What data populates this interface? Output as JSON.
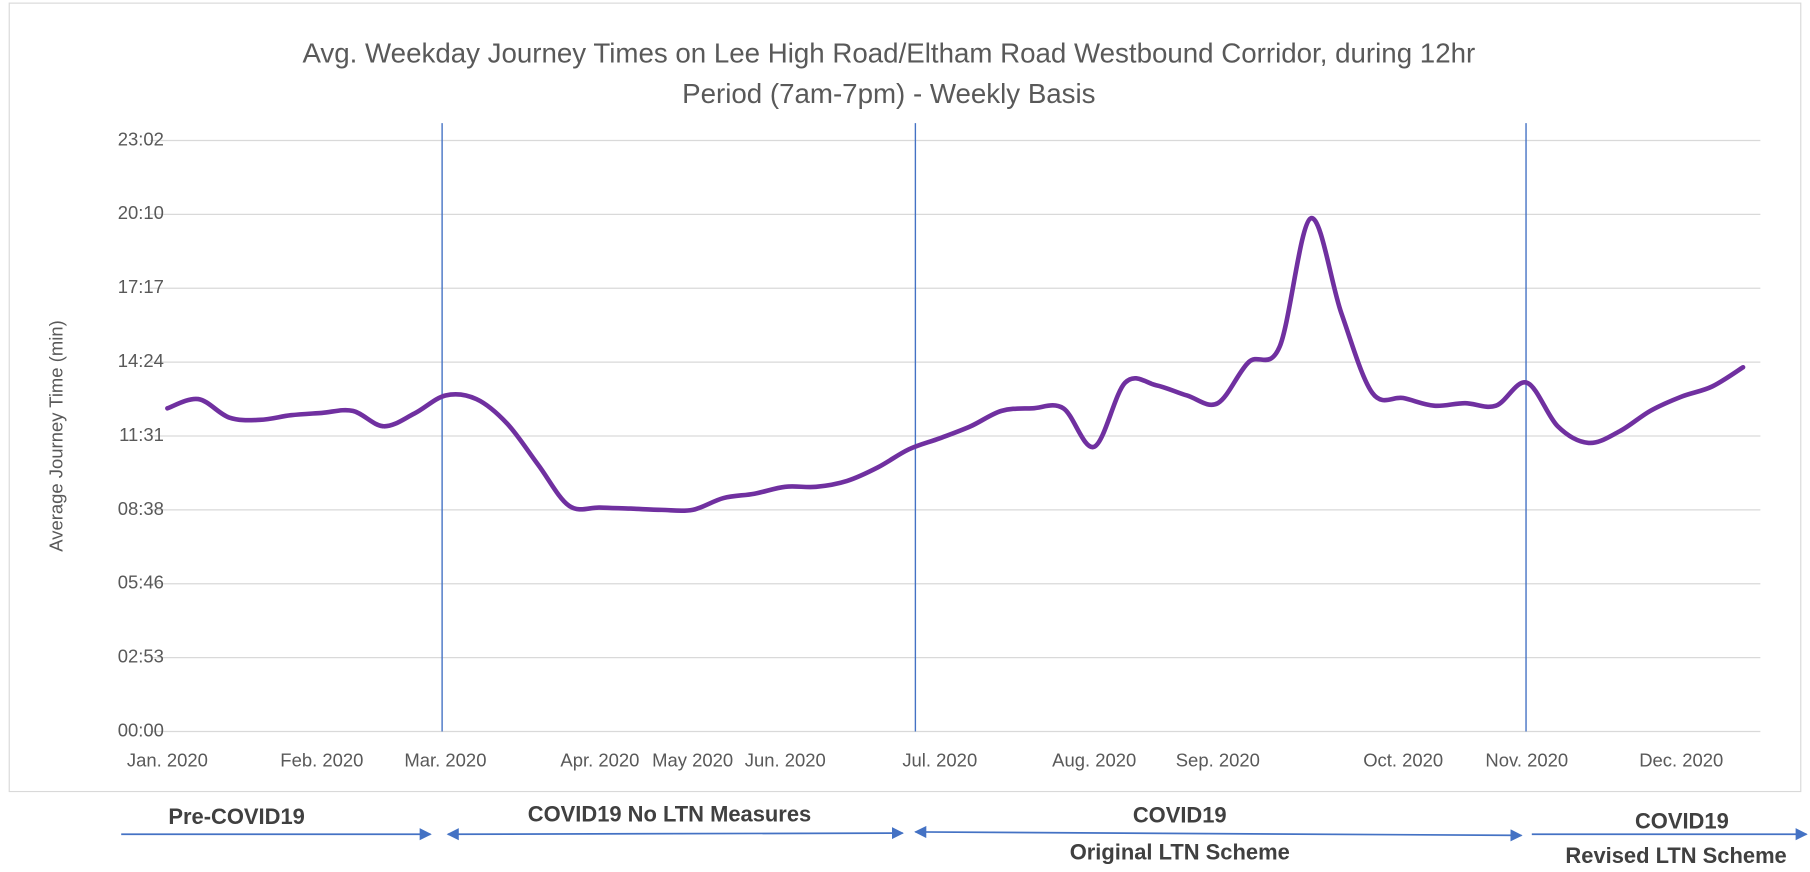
{
  "chart_data": {
    "type": "line",
    "title": [
      "Avg. Weekday Journey Times on Lee High Road/Eltham Road Westbound Corridor, during 12hr",
      "Period (7am-7pm) - Weekly Basis"
    ],
    "y_label": "Average Journey Time (min)",
    "categories": [
      "Jan. 2020",
      null,
      null,
      null,
      null,
      "Feb. 2020",
      null,
      null,
      null,
      "Mar. 2020",
      null,
      null,
      null,
      null,
      "Apr. 2020",
      null,
      null,
      "May 2020",
      null,
      null,
      "Jun. 2020",
      null,
      null,
      null,
      null,
      "Jul. 2020",
      null,
      null,
      null,
      null,
      "Aug. 2020",
      null,
      null,
      null,
      "Sep. 2020",
      null,
      null,
      null,
      null,
      null,
      "Oct. 2020",
      null,
      null,
      null,
      "Nov. 2020",
      null,
      null,
      null,
      null,
      "Dec. 2020",
      null,
      null
    ],
    "series": [
      {
        "name": "Average Journey Time",
        "color": "#7030a0",
        "values": [
          12.6,
          12.96,
          12.24,
          12.15,
          12.33,
          12.42,
          12.5,
          11.9,
          12.4,
          13.1,
          12.96,
          12.0,
          10.4,
          8.8,
          8.73,
          8.69,
          8.64,
          8.64,
          9.1,
          9.27,
          9.54,
          9.54,
          9.77,
          10.3,
          11.0,
          11.43,
          11.9,
          12.5,
          12.6,
          12.6,
          11.1,
          13.6,
          13.5,
          13.1,
          12.8,
          14.4,
          15.0,
          20.0,
          16.3,
          13.2,
          13.0,
          12.7,
          12.8,
          12.7,
          13.6,
          11.9,
          11.25,
          11.7,
          12.5,
          13.05,
          13.45,
          14.2
        ]
      }
    ],
    "ylim": [
      0,
      23.04
    ],
    "yticks": [
      {
        "value": 0,
        "label": "00:00"
      },
      {
        "value": 2.88,
        "label": "02:53"
      },
      {
        "value": 5.76,
        "label": "05:46"
      },
      {
        "value": 8.64,
        "label": "08:38"
      },
      {
        "value": 11.52,
        "label": "11:31"
      },
      {
        "value": 14.4,
        "label": "14:24"
      },
      {
        "value": 17.28,
        "label": "17:17"
      },
      {
        "value": 20.16,
        "label": "20:10"
      },
      {
        "value": 23.04,
        "label": "23:02"
      }
    ],
    "grid": true,
    "annotations": [
      [
        "Pre-COVID19"
      ],
      [
        "COVID19 No LTN Measures"
      ],
      [
        "COVID19",
        "Original LTN Scheme"
      ],
      [
        "COVID19",
        "Revised LTN Scheme"
      ]
    ]
  }
}
